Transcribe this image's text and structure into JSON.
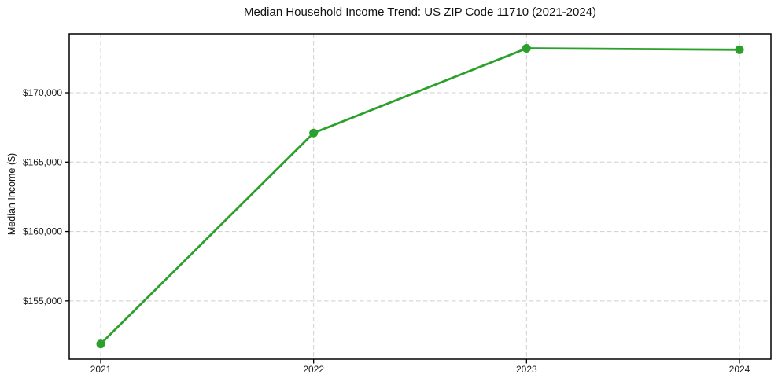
{
  "chart_data": {
    "type": "line",
    "title": "Median Household Income Trend: US ZIP Code 11710 (2021-2024)",
    "xlabel": "",
    "ylabel": "Median Income ($)",
    "categories": [
      "2021",
      "2022",
      "2023",
      "2024"
    ],
    "values": [
      151900,
      167100,
      173200,
      173100
    ],
    "yticks": [
      155000,
      160000,
      165000,
      170000
    ],
    "ytick_labels": [
      "$155,000",
      "$160,000",
      "$165,000",
      "$170,000"
    ],
    "ylim": [
      150800,
      174250
    ],
    "grid": true,
    "grid_style": "dashed",
    "legend_position": "none",
    "colors": {
      "line": "#2ca02c",
      "marker": "#2ca02c",
      "grid": "#cfcfcf",
      "axis": "#000000",
      "text": "#1a1a1a",
      "background": "#ffffff"
    }
  }
}
